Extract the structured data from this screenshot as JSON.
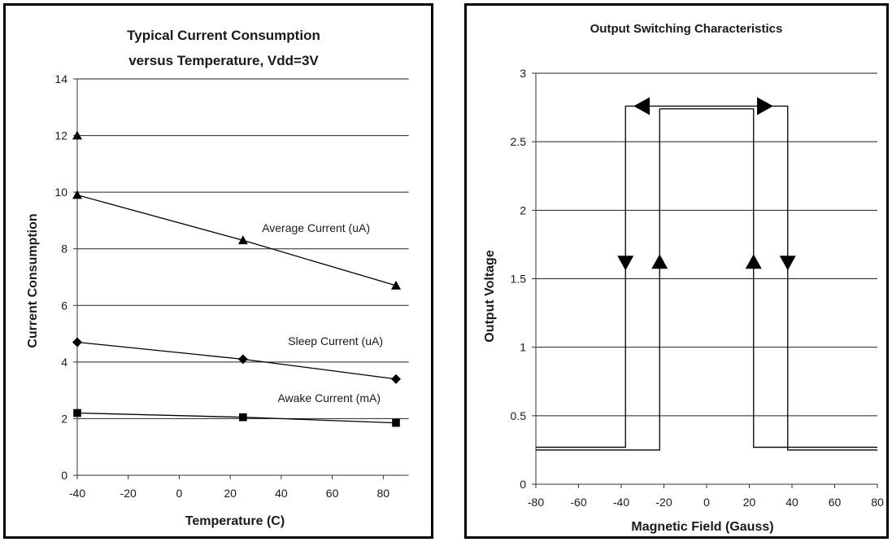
{
  "chart_data": [
    {
      "type": "line",
      "title": "Typical Current Consumption versus Temperature, Vdd=3V",
      "title_lines": [
        "Typical Current Consumption",
        "versus Temperature, Vdd=3V"
      ],
      "xlabel": "Temperature (C)",
      "ylabel": "Current Consumption",
      "xlim": [
        -40,
        90
      ],
      "ylim": [
        0,
        14
      ],
      "xticks": [
        -40,
        -20,
        0,
        20,
        40,
        60,
        80
      ],
      "yticks": [
        0,
        2,
        4,
        6,
        8,
        10,
        12,
        14
      ],
      "grid": "horizontal",
      "series": [
        {
          "name": "Average Current (uA)",
          "marker": "triangle",
          "x": [
            -40,
            25,
            85
          ],
          "y": [
            9.9,
            8.3,
            6.7
          ]
        },
        {
          "name": "Sleep Current (uA)",
          "marker": "diamond",
          "x": [
            -40,
            25,
            85
          ],
          "y": [
            4.7,
            4.1,
            3.4
          ]
        },
        {
          "name": "Awake Current (mA)",
          "marker": "square",
          "x": [
            -40,
            25,
            85
          ],
          "y": [
            2.2,
            2.05,
            1.85
          ]
        }
      ],
      "extra_points": [
        {
          "marker": "triangle",
          "x": -40,
          "y": 12
        }
      ]
    },
    {
      "type": "line",
      "title": "Output Switching Characteristics",
      "xlabel": "Magnetic Field (Gauss)",
      "ylabel": "Output Voltage",
      "xlim": [
        -80,
        80
      ],
      "ylim": [
        0,
        3
      ],
      "xticks": [
        -80,
        -60,
        -40,
        -20,
        0,
        20,
        40,
        60,
        80
      ],
      "yticks": [
        0,
        0.5,
        1,
        1.5,
        2,
        2.5,
        3
      ],
      "ytick_labels": [
        "0",
        "0.5",
        "1",
        "1.5",
        "2",
        "2.5",
        "3"
      ],
      "grid": "horizontal",
      "series": [
        {
          "x": [
            -80,
            -38,
            -38,
            38,
            38,
            80
          ],
          "y": [
            0.27,
            0.27,
            2.76,
            2.76,
            0.25,
            0.25
          ]
        },
        {
          "x": [
            -80,
            -22,
            -22,
            22,
            22,
            80
          ],
          "y": [
            0.25,
            0.25,
            2.74,
            2.74,
            0.27,
            0.27
          ]
        }
      ],
      "arrows": [
        {
          "x": -38,
          "y": 1.62,
          "dir": "down"
        },
        {
          "x": -22,
          "y": 1.62,
          "dir": "up"
        },
        {
          "x": 22,
          "y": 1.62,
          "dir": "up"
        },
        {
          "x": 38,
          "y": 1.62,
          "dir": "down"
        },
        {
          "x": -30,
          "y": 2.76,
          "dir": "left"
        },
        {
          "x": 27,
          "y": 2.76,
          "dir": "right"
        }
      ]
    }
  ]
}
